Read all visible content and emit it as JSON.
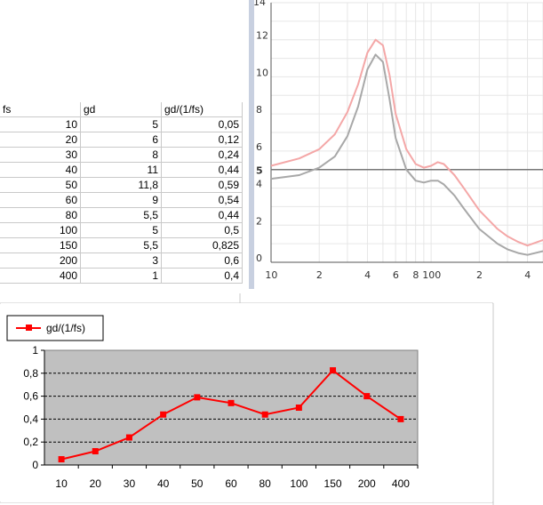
{
  "table": {
    "headers": [
      "fs",
      "gd",
      "gd/(1/fs)"
    ],
    "rows": [
      [
        "10",
        "5",
        "0,05"
      ],
      [
        "20",
        "6",
        "0,12"
      ],
      [
        "30",
        "8",
        "0,24"
      ],
      [
        "40",
        "11",
        "0,44"
      ],
      [
        "50",
        "11,8",
        "0,59"
      ],
      [
        "60",
        "9",
        "0,54"
      ],
      [
        "80",
        "5,5",
        "0,44"
      ],
      [
        "100",
        "5",
        "0,5"
      ],
      [
        "150",
        "5,5",
        "0,825"
      ],
      [
        "200",
        "3",
        "0,6"
      ],
      [
        "400",
        "1",
        "0,4"
      ]
    ]
  },
  "chart_data": [
    {
      "type": "line",
      "x_scale": "log",
      "x_tick_labels": [
        "10",
        "2",
        "4",
        "6",
        "8",
        "100",
        "2",
        "4"
      ],
      "y_tick_labels": [
        "0",
        "2",
        "4",
        "6",
        "8",
        "10",
        "12",
        "14"
      ],
      "ylim": [
        0,
        14
      ],
      "reference_line": {
        "value": 5,
        "label": "5"
      },
      "grid": true,
      "series": [
        {
          "color": "#f4a7a7",
          "x": [
            10,
            15,
            20,
            25,
            30,
            35,
            40,
            45,
            50,
            55,
            60,
            70,
            80,
            90,
            100,
            110,
            120,
            140,
            160,
            200,
            260,
            300,
            350,
            400,
            500
          ],
          "y": [
            5.2,
            5.6,
            6.1,
            6.9,
            8.1,
            9.6,
            11.3,
            12.0,
            11.7,
            10.1,
            8.0,
            6.1,
            5.3,
            5.1,
            5.2,
            5.4,
            5.3,
            4.7,
            4.0,
            2.8,
            1.8,
            1.4,
            1.1,
            0.9,
            1.2
          ]
        },
        {
          "color": "#a8a8a8",
          "x": [
            10,
            15,
            20,
            25,
            30,
            35,
            40,
            45,
            50,
            55,
            60,
            70,
            80,
            90,
            100,
            110,
            120,
            140,
            160,
            200,
            260,
            300,
            350,
            400,
            500
          ],
          "y": [
            4.5,
            4.7,
            5.1,
            5.7,
            6.8,
            8.4,
            10.4,
            11.2,
            10.8,
            8.8,
            6.7,
            5.0,
            4.4,
            4.3,
            4.4,
            4.4,
            4.2,
            3.6,
            2.9,
            1.8,
            1.0,
            0.7,
            0.5,
            0.4,
            0.6
          ]
        }
      ]
    },
    {
      "type": "line",
      "categories": [
        "10",
        "20",
        "30",
        "40",
        "50",
        "60",
        "80",
        "100",
        "150",
        "200",
        "400"
      ],
      "series": [
        {
          "name": "gd/(1/fs)",
          "color": "#ff0000",
          "values": [
            0.05,
            0.12,
            0.24,
            0.44,
            0.59,
            0.54,
            0.44,
            0.5,
            0.825,
            0.6,
            0.4
          ]
        }
      ],
      "ylim": [
        0,
        1
      ],
      "y_ticks": [
        "0",
        "0,2",
        "0,4",
        "0,6",
        "0,8",
        "1"
      ],
      "legend": "top-left",
      "grid": true,
      "plot_background": "#c0c0c0"
    }
  ]
}
